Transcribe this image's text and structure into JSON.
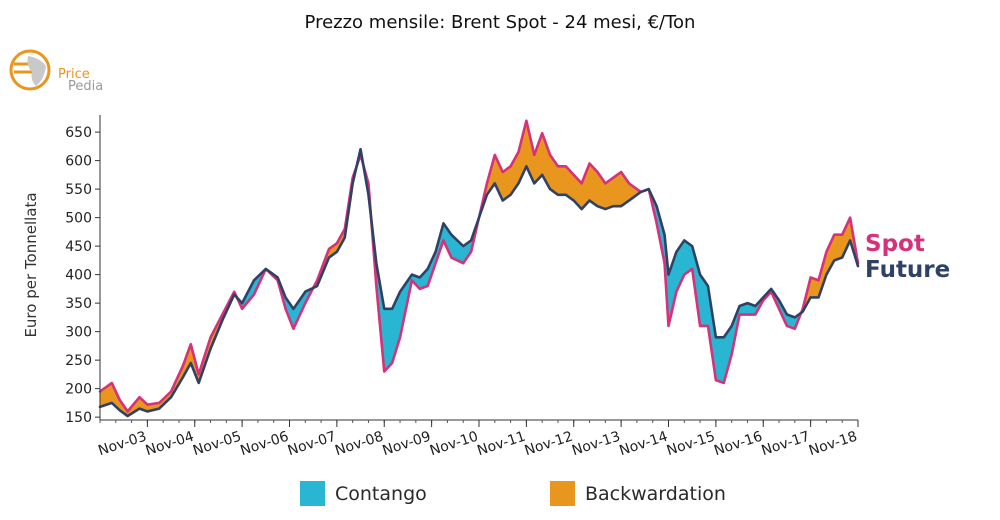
{
  "chart_data": {
    "type": "area",
    "title": "Prezzo mensile: Brent Spot - 24 mesi, €/Ton",
    "ylabel": "Euro per Tonnellata",
    "xlabel": "",
    "ylim": [
      145,
      680
    ],
    "yticks": [
      150,
      200,
      250,
      300,
      350,
      400,
      450,
      500,
      550,
      600,
      650
    ],
    "xlim": [
      "2002-11",
      "2018-11"
    ],
    "xticks": [
      "Nov-03",
      "Nov-04",
      "Nov-05",
      "Nov-06",
      "Nov-07",
      "Nov-08",
      "Nov-09",
      "Nov-10",
      "Nov-11",
      "Nov-12",
      "Nov-13",
      "Nov-14",
      "Nov-15",
      "Nov-16",
      "Nov-17",
      "Nov-18"
    ],
    "grid": false,
    "legend_position": "bottom",
    "legend": [
      {
        "label": "Contango",
        "color": "#29b6d3"
      },
      {
        "label": "Backwardation",
        "color": "#e8961e"
      }
    ],
    "series": [
      {
        "name": "Spot",
        "color": "#d6317a",
        "points": [
          [
            "2002-11",
            195
          ],
          [
            "2003-02",
            210
          ],
          [
            "2003-04",
            180
          ],
          [
            "2003-06",
            160
          ],
          [
            "2003-09",
            185
          ],
          [
            "2003-11",
            172
          ],
          [
            "2004-02",
            175
          ],
          [
            "2004-05",
            195
          ],
          [
            "2004-08",
            240
          ],
          [
            "2004-10",
            278
          ],
          [
            "2004-12",
            225
          ],
          [
            "2005-03",
            290
          ],
          [
            "2005-06",
            330
          ],
          [
            "2005-09",
            370
          ],
          [
            "2005-11",
            340
          ],
          [
            "2006-02",
            365
          ],
          [
            "2006-05",
            410
          ],
          [
            "2006-08",
            390
          ],
          [
            "2006-10",
            340
          ],
          [
            "2006-12",
            305
          ],
          [
            "2007-03",
            350
          ],
          [
            "2007-06",
            390
          ],
          [
            "2007-09",
            445
          ],
          [
            "2007-11",
            455
          ],
          [
            "2008-01",
            480
          ],
          [
            "2008-03",
            570
          ],
          [
            "2008-05",
            610
          ],
          [
            "2008-07",
            560
          ],
          [
            "2008-09",
            380
          ],
          [
            "2008-11",
            230
          ],
          [
            "2009-01",
            245
          ],
          [
            "2009-03",
            290
          ],
          [
            "2009-06",
            390
          ],
          [
            "2009-08",
            375
          ],
          [
            "2009-10",
            380
          ],
          [
            "2009-12",
            420
          ],
          [
            "2010-02",
            460
          ],
          [
            "2010-04",
            430
          ],
          [
            "2010-07",
            420
          ],
          [
            "2010-09",
            440
          ],
          [
            "2010-11",
            500
          ],
          [
            "2011-01",
            560
          ],
          [
            "2011-03",
            610
          ],
          [
            "2011-05",
            580
          ],
          [
            "2011-07",
            590
          ],
          [
            "2011-09",
            615
          ],
          [
            "2011-11",
            670
          ],
          [
            "2012-01",
            610
          ],
          [
            "2012-03",
            648
          ],
          [
            "2012-05",
            610
          ],
          [
            "2012-07",
            590
          ],
          [
            "2012-09",
            590
          ],
          [
            "2012-11",
            575
          ],
          [
            "2013-01",
            560
          ],
          [
            "2013-03",
            595
          ],
          [
            "2013-05",
            580
          ],
          [
            "2013-07",
            560
          ],
          [
            "2013-09",
            570
          ],
          [
            "2013-11",
            580
          ],
          [
            "2014-01",
            560
          ],
          [
            "2014-04",
            545
          ],
          [
            "2014-06",
            550
          ],
          [
            "2014-08",
            490
          ],
          [
            "2014-10",
            420
          ],
          [
            "2014-11",
            310
          ],
          [
            "2015-01",
            370
          ],
          [
            "2015-03",
            400
          ],
          [
            "2015-05",
            410
          ],
          [
            "2015-07",
            310
          ],
          [
            "2015-09",
            310
          ],
          [
            "2015-11",
            215
          ],
          [
            "2016-01",
            210
          ],
          [
            "2016-03",
            260
          ],
          [
            "2016-05",
            330
          ],
          [
            "2016-07",
            330
          ],
          [
            "2016-09",
            330
          ],
          [
            "2016-11",
            355
          ],
          [
            "2017-01",
            370
          ],
          [
            "2017-03",
            340
          ],
          [
            "2017-05",
            310
          ],
          [
            "2017-07",
            305
          ],
          [
            "2017-09",
            340
          ],
          [
            "2017-11",
            395
          ],
          [
            "2018-01",
            390
          ],
          [
            "2018-03",
            440
          ],
          [
            "2018-05",
            470
          ],
          [
            "2018-07",
            470
          ],
          [
            "2018-09",
            500
          ],
          [
            "2018-11",
            420
          ]
        ]
      },
      {
        "name": "Future",
        "color": "#2f4266",
        "points": [
          [
            "2002-11",
            168
          ],
          [
            "2003-02",
            175
          ],
          [
            "2003-04",
            162
          ],
          [
            "2003-06",
            152
          ],
          [
            "2003-09",
            165
          ],
          [
            "2003-11",
            160
          ],
          [
            "2004-02",
            165
          ],
          [
            "2004-05",
            185
          ],
          [
            "2004-08",
            220
          ],
          [
            "2004-10",
            245
          ],
          [
            "2004-12",
            210
          ],
          [
            "2005-03",
            270
          ],
          [
            "2005-06",
            320
          ],
          [
            "2005-09",
            365
          ],
          [
            "2005-11",
            350
          ],
          [
            "2006-02",
            390
          ],
          [
            "2006-05",
            410
          ],
          [
            "2006-08",
            395
          ],
          [
            "2006-10",
            360
          ],
          [
            "2006-12",
            340
          ],
          [
            "2007-03",
            370
          ],
          [
            "2007-06",
            380
          ],
          [
            "2007-09",
            430
          ],
          [
            "2007-11",
            440
          ],
          [
            "2008-01",
            465
          ],
          [
            "2008-03",
            560
          ],
          [
            "2008-05",
            620
          ],
          [
            "2008-07",
            540
          ],
          [
            "2008-09",
            420
          ],
          [
            "2008-11",
            340
          ],
          [
            "2009-01",
            340
          ],
          [
            "2009-03",
            370
          ],
          [
            "2009-06",
            400
          ],
          [
            "2009-08",
            395
          ],
          [
            "2009-10",
            410
          ],
          [
            "2009-12",
            440
          ],
          [
            "2010-02",
            490
          ],
          [
            "2010-04",
            470
          ],
          [
            "2010-07",
            450
          ],
          [
            "2010-09",
            460
          ],
          [
            "2010-11",
            500
          ],
          [
            "2011-01",
            540
          ],
          [
            "2011-03",
            560
          ],
          [
            "2011-05",
            530
          ],
          [
            "2011-07",
            540
          ],
          [
            "2011-09",
            560
          ],
          [
            "2011-11",
            590
          ],
          [
            "2012-01",
            560
          ],
          [
            "2012-03",
            575
          ],
          [
            "2012-05",
            550
          ],
          [
            "2012-07",
            540
          ],
          [
            "2012-09",
            540
          ],
          [
            "2012-11",
            530
          ],
          [
            "2013-01",
            515
          ],
          [
            "2013-03",
            530
          ],
          [
            "2013-05",
            520
          ],
          [
            "2013-07",
            515
          ],
          [
            "2013-09",
            520
          ],
          [
            "2013-11",
            520
          ],
          [
            "2014-01",
            530
          ],
          [
            "2014-04",
            545
          ],
          [
            "2014-06",
            550
          ],
          [
            "2014-08",
            520
          ],
          [
            "2014-10",
            470
          ],
          [
            "2014-11",
            400
          ],
          [
            "2015-01",
            440
          ],
          [
            "2015-03",
            460
          ],
          [
            "2015-05",
            450
          ],
          [
            "2015-07",
            400
          ],
          [
            "2015-09",
            380
          ],
          [
            "2015-11",
            290
          ],
          [
            "2016-01",
            290
          ],
          [
            "2016-03",
            310
          ],
          [
            "2016-05",
            345
          ],
          [
            "2016-07",
            350
          ],
          [
            "2016-09",
            345
          ],
          [
            "2016-11",
            360
          ],
          [
            "2017-01",
            375
          ],
          [
            "2017-03",
            355
          ],
          [
            "2017-05",
            330
          ],
          [
            "2017-07",
            325
          ],
          [
            "2017-09",
            335
          ],
          [
            "2017-11",
            360
          ],
          [
            "2018-01",
            360
          ],
          [
            "2018-03",
            400
          ],
          [
            "2018-05",
            425
          ],
          [
            "2018-07",
            430
          ],
          [
            "2018-09",
            460
          ],
          [
            "2018-11",
            415
          ]
        ]
      }
    ]
  },
  "logo": {
    "line1": "Price",
    "line2": "Pedia",
    "color1": "#e8961e",
    "color2": "#9a9a9a"
  }
}
